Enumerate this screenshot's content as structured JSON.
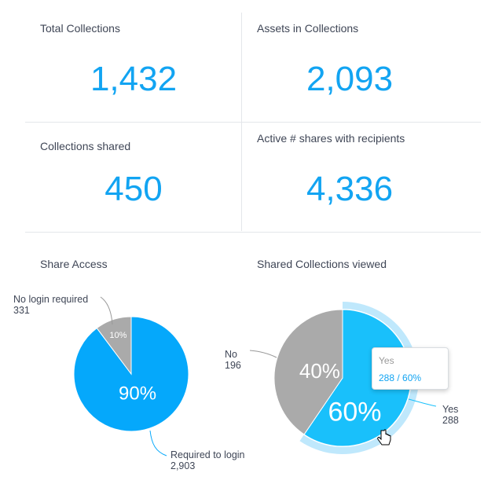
{
  "kpis": [
    {
      "label": "Total Collections",
      "value": "1,432"
    },
    {
      "label": "Assets in Collections",
      "value": "2,093"
    },
    {
      "label": "Collections shared",
      "value": "450"
    },
    {
      "label": "Active # shares with recipients",
      "value": "4,336"
    }
  ],
  "colors": {
    "accent": "#12a4f2",
    "blue_slice": "#05a8fb",
    "blue_slice_hover": "#19c0fb",
    "halo": "#bfe8fc",
    "gray_slice": "#aaaaaa"
  },
  "chart_data": [
    {
      "type": "pie",
      "title": "Share Access",
      "slices": [
        {
          "name": "Required to login",
          "value": 2903,
          "percent_label": "90%"
        },
        {
          "name": "No login required",
          "value": 331,
          "percent_label": "10%"
        }
      ]
    },
    {
      "type": "pie",
      "title": "Shared Collections viewed",
      "slices": [
        {
          "name": "Yes",
          "value": 288,
          "percent_label": "60%"
        },
        {
          "name": "No",
          "value": 196,
          "percent_label": "40%"
        }
      ],
      "hovered": "Yes",
      "tooltip": {
        "title": "Yes",
        "value": "288 / 60%"
      }
    }
  ]
}
